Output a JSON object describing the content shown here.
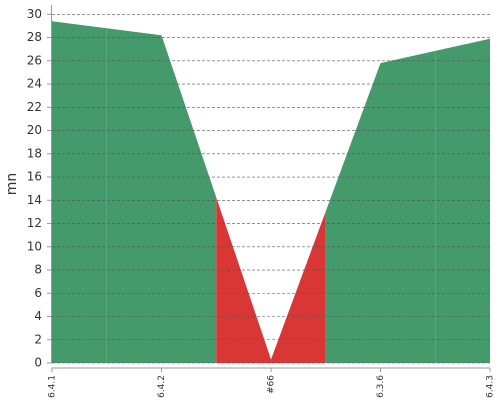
{
  "chart_data": {
    "type": "area",
    "ylabel": "mn",
    "categories": [
      "6.4.1",
      "6.4.2",
      "#66",
      "6.3.6",
      "6.4.3"
    ],
    "values": [
      29.4,
      28.2,
      0.3,
      25.8,
      27.9
    ],
    "point_colors": [
      "#459a6b",
      "#459a6b",
      "#d93636",
      "#459a6b",
      "#459a6b"
    ],
    "ylim": [
      0,
      30.8
    ],
    "yticks": [
      0,
      2,
      4,
      6,
      8,
      10,
      12,
      14,
      16,
      18,
      20,
      22,
      24,
      26,
      28,
      30
    ],
    "grid": true
  }
}
